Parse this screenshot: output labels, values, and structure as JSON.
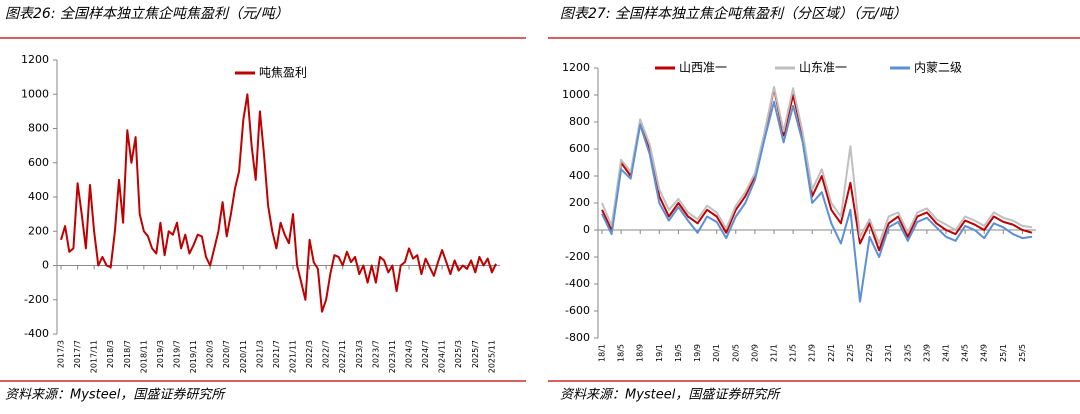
{
  "chart_data": [
    {
      "type": "line",
      "title": "图表26: 全国样本独立焦企吨焦盈利（元/吨）",
      "source": "资料来源：Mysteel，国盛证券研究所",
      "categories": [
        "2017/3",
        null,
        null,
        null,
        "2017/7",
        null,
        null,
        null,
        "2017/11",
        null,
        null,
        null,
        "2018/3",
        null,
        null,
        null,
        "2018/7",
        null,
        null,
        null,
        "2018/11",
        null,
        null,
        null,
        "2019/3",
        null,
        null,
        null,
        "2019/7",
        null,
        null,
        null,
        "2019/11",
        null,
        null,
        null,
        "2020/3",
        null,
        null,
        null,
        "2020/7",
        null,
        null,
        null,
        "2020/11",
        null,
        null,
        null,
        "2021/3",
        null,
        null,
        null,
        "2021/7",
        null,
        null,
        null,
        "2021/11",
        null,
        null,
        null,
        "2022/3",
        null,
        null,
        null,
        "2022/7",
        null,
        null,
        null,
        "2022/11",
        null,
        null,
        null,
        "2023/3",
        null,
        null,
        null,
        "2023/7",
        null,
        null,
        null,
        "2023/11",
        null,
        null,
        null,
        "2024/3",
        null,
        null,
        null,
        "2024/7",
        null,
        null,
        null,
        "2024/11",
        null,
        null,
        null,
        "2025/3",
        null,
        null,
        null,
        "2025/7",
        null,
        null,
        null,
        "2025/11",
        null
      ],
      "series": [
        {
          "name": "吨焦盈利",
          "color": "#c00000",
          "values": [
            150,
            230,
            80,
            100,
            480,
            300,
            100,
            470,
            200,
            0,
            50,
            0,
            -10,
            200,
            500,
            250,
            790,
            600,
            750,
            300,
            200,
            170,
            100,
            70,
            250,
            60,
            200,
            180,
            250,
            100,
            180,
            70,
            120,
            180,
            170,
            50,
            0,
            100,
            200,
            370,
            170,
            300,
            450,
            550,
            850,
            1000,
            700,
            500,
            900,
            650,
            350,
            200,
            100,
            250,
            180,
            130,
            300,
            0,
            -100,
            -200,
            150,
            20,
            -20,
            -270,
            -200,
            -50,
            60,
            50,
            0,
            80,
            20,
            50,
            -50,
            0,
            -100,
            0,
            -100,
            50,
            30,
            -40,
            0,
            -150,
            0,
            20,
            100,
            40,
            60,
            -50,
            40,
            -10,
            -60,
            20,
            90,
            20,
            -50,
            30,
            -30,
            0,
            -20,
            30,
            -40,
            50,
            0,
            40,
            -40,
            10
          ]
        }
      ],
      "ylim": [
        -400,
        1200
      ],
      "yticks": [
        -400,
        -200,
        0,
        200,
        400,
        600,
        800,
        1000,
        1200
      ]
    },
    {
      "type": "line",
      "title": "图表27: 全国样本独立焦企吨焦盈利（分区域）（元/吨）",
      "source": "资料来源：Mysteel，国盛证券研究所",
      "categories": [
        "18/1",
        null,
        "18/5",
        null,
        "18/9",
        null,
        "19/1",
        null,
        "19/5",
        null,
        "19/9",
        null,
        "20/1",
        null,
        "20/5",
        null,
        "20/9",
        null,
        "21/1",
        null,
        "21/5",
        null,
        "21/9",
        null,
        "22/1",
        null,
        "22/5",
        null,
        "22/9",
        null,
        "23/1",
        null,
        "23/5",
        null,
        "23/9",
        null,
        "24/1",
        null,
        "24/5",
        null,
        "24/9",
        null,
        "25/1",
        null,
        "25/5",
        null
      ],
      "series": [
        {
          "name": "山西准一",
          "color": "#c00000",
          "values": [
            150,
            0,
            500,
            400,
            800,
            600,
            250,
            100,
            200,
            100,
            50,
            150,
            100,
            -20,
            150,
            250,
            400,
            700,
            1050,
            700,
            1000,
            700,
            250,
            400,
            150,
            50,
            350,
            -100,
            50,
            -150,
            50,
            100,
            -50,
            100,
            130,
            50,
            0,
            -30,
            70,
            40,
            0,
            100,
            60,
            40,
            0,
            -20
          ]
        },
        {
          "name": "山东准一",
          "color": "#bfbfbf",
          "values": [
            200,
            30,
            520,
            430,
            820,
            630,
            300,
            150,
            230,
            130,
            80,
            180,
            130,
            10,
            180,
            280,
            420,
            720,
            1060,
            730,
            1050,
            720,
            300,
            450,
            200,
            100,
            620,
            -50,
            80,
            -100,
            100,
            130,
            -20,
            130,
            160,
            80,
            40,
            0,
            100,
            70,
            30,
            130,
            90,
            70,
            30,
            20
          ]
        },
        {
          "name": "内蒙二级",
          "color": "#5b8fd6",
          "values": [
            120,
            -30,
            450,
            380,
            780,
            560,
            200,
            70,
            170,
            70,
            -20,
            100,
            60,
            -60,
            100,
            200,
            370,
            670,
            950,
            650,
            920,
            650,
            200,
            280,
            50,
            -100,
            150,
            -530,
            -50,
            -200,
            20,
            60,
            -80,
            60,
            90,
            20,
            -50,
            -80,
            30,
            0,
            -60,
            50,
            20,
            -30,
            -60,
            -50
          ]
        }
      ],
      "ylim": [
        -800,
        1200
      ],
      "yticks": [
        -800,
        -600,
        -400,
        -200,
        0,
        200,
        400,
        600,
        800,
        1000,
        1200
      ]
    }
  ]
}
